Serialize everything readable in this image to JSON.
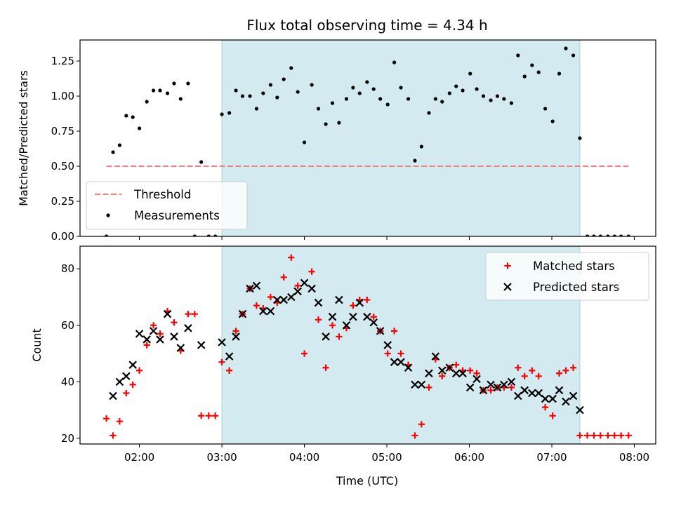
{
  "chart_data": {
    "title": "Flux total observing time = 4.34 h",
    "xlabel": "Time (UTC)",
    "x_ticks": [
      "02:00",
      "03:00",
      "04:00",
      "05:00",
      "06:00",
      "07:00",
      "08:00"
    ],
    "x_tick_hours": [
      2,
      3,
      4,
      5,
      6,
      7,
      8
    ],
    "xlim_hours": [
      1.28,
      8.26
    ],
    "observing_window_hours": [
      3.0,
      7.34
    ],
    "window_color": "#d3eaf0",
    "panels": [
      {
        "type": "scatter",
        "ylabel": "Matched/Predicted stars",
        "ylim": [
          0,
          1.4
        ],
        "y_ticks": [
          "0.00",
          "0.25",
          "0.50",
          "0.75",
          "1.00",
          "1.25"
        ],
        "y_tick_values": [
          0,
          0.25,
          0.5,
          0.75,
          1.0,
          1.25
        ],
        "threshold": {
          "name": "Threshold",
          "value": 0.5,
          "x_range": [
            1.6,
            7.93
          ],
          "color": "#f08080"
        },
        "legend": [
          "Threshold",
          "Measurements"
        ],
        "legend_position": "lower-left",
        "series": [
          {
            "name": "Measurements",
            "color": "#000000",
            "points": [
              [
                1.6,
                0.0
              ],
              [
                1.68,
                0.6
              ],
              [
                1.76,
                0.65
              ],
              [
                1.84,
                0.86
              ],
              [
                1.92,
                0.85
              ],
              [
                2.0,
                0.77
              ],
              [
                2.09,
                0.96
              ],
              [
                2.17,
                1.04
              ],
              [
                2.25,
                1.04
              ],
              [
                2.34,
                1.02
              ],
              [
                2.42,
                1.09
              ],
              [
                2.5,
                0.98
              ],
              [
                2.59,
                1.09
              ],
              [
                2.67,
                0.0
              ],
              [
                2.75,
                0.53
              ],
              [
                2.84,
                0.0
              ],
              [
                2.92,
                0.0
              ],
              [
                3.0,
                0.87
              ],
              [
                3.09,
                0.88
              ],
              [
                3.17,
                1.04
              ],
              [
                3.25,
                1.0
              ],
              [
                3.34,
                1.0
              ],
              [
                3.42,
                0.91
              ],
              [
                3.5,
                1.02
              ],
              [
                3.59,
                1.08
              ],
              [
                3.67,
                0.99
              ],
              [
                3.75,
                1.12
              ],
              [
                3.84,
                1.2
              ],
              [
                3.92,
                1.03
              ],
              [
                4.0,
                0.67
              ],
              [
                4.09,
                1.08
              ],
              [
                4.17,
                0.91
              ],
              [
                4.26,
                0.8
              ],
              [
                4.34,
                0.95
              ],
              [
                4.42,
                0.81
              ],
              [
                4.51,
                0.98
              ],
              [
                4.59,
                1.06
              ],
              [
                4.67,
                1.02
              ],
              [
                4.76,
                1.1
              ],
              [
                4.84,
                1.05
              ],
              [
                4.92,
                0.98
              ],
              [
                5.01,
                0.94
              ],
              [
                5.09,
                1.24
              ],
              [
                5.17,
                1.06
              ],
              [
                5.26,
                0.98
              ],
              [
                5.34,
                0.54
              ],
              [
                5.42,
                0.64
              ],
              [
                5.51,
                0.88
              ],
              [
                5.59,
                0.98
              ],
              [
                5.67,
                0.96
              ],
              [
                5.76,
                1.02
              ],
              [
                5.84,
                1.07
              ],
              [
                5.92,
                1.04
              ],
              [
                6.01,
                1.16
              ],
              [
                6.09,
                1.05
              ],
              [
                6.17,
                1.0
              ],
              [
                6.26,
                0.97
              ],
              [
                6.34,
                1.0
              ],
              [
                6.42,
                0.98
              ],
              [
                6.51,
                0.95
              ],
              [
                6.59,
                1.29
              ],
              [
                6.67,
                1.14
              ],
              [
                6.76,
                1.22
              ],
              [
                6.84,
                1.17
              ],
              [
                6.92,
                0.91
              ],
              [
                7.01,
                0.82
              ],
              [
                7.09,
                1.16
              ],
              [
                7.17,
                1.34
              ],
              [
                7.26,
                1.29
              ],
              [
                7.34,
                0.7
              ],
              [
                7.43,
                0.0
              ],
              [
                7.51,
                0.0
              ],
              [
                7.59,
                0.0
              ],
              [
                7.68,
                0.0
              ],
              [
                7.76,
                0.0
              ],
              [
                7.84,
                0.0
              ],
              [
                7.93,
                0.0
              ]
            ]
          }
        ]
      },
      {
        "type": "scatter",
        "ylabel": "Count",
        "ylim": [
          18,
          88
        ],
        "y_ticks": [
          "20",
          "40",
          "60",
          "80"
        ],
        "y_tick_values": [
          20,
          40,
          60,
          80
        ],
        "legend": [
          "Matched stars",
          "Predicted stars"
        ],
        "legend_position": "upper-right",
        "series": [
          {
            "name": "Matched stars",
            "marker": "plus",
            "color": "#ff0000",
            "points": [
              [
                1.6,
                27
              ],
              [
                1.68,
                21
              ],
              [
                1.76,
                26
              ],
              [
                1.84,
                36
              ],
              [
                1.92,
                39
              ],
              [
                2.0,
                44
              ],
              [
                2.09,
                53
              ],
              [
                2.17,
                60
              ],
              [
                2.25,
                57
              ],
              [
                2.34,
                65
              ],
              [
                2.42,
                61
              ],
              [
                2.5,
                51
              ],
              [
                2.59,
                64
              ],
              [
                2.67,
                64
              ],
              [
                2.75,
                28
              ],
              [
                2.84,
                28
              ],
              [
                2.92,
                28
              ],
              [
                3.0,
                47
              ],
              [
                3.09,
                44
              ],
              [
                3.17,
                58
              ],
              [
                3.25,
                64
              ],
              [
                3.34,
                73
              ],
              [
                3.42,
                67
              ],
              [
                3.5,
                66
              ],
              [
                3.59,
                70
              ],
              [
                3.67,
                68
              ],
              [
                3.75,
                77
              ],
              [
                3.84,
                84
              ],
              [
                3.92,
                74
              ],
              [
                4.0,
                50
              ],
              [
                4.09,
                79
              ],
              [
                4.17,
                62
              ],
              [
                4.26,
                45
              ],
              [
                4.34,
                60
              ],
              [
                4.42,
                56
              ],
              [
                4.51,
                59
              ],
              [
                4.59,
                67
              ],
              [
                4.67,
                69
              ],
              [
                4.76,
                69
              ],
              [
                4.84,
                63
              ],
              [
                4.92,
                58
              ],
              [
                5.01,
                50
              ],
              [
                5.09,
                58
              ],
              [
                5.17,
                50
              ],
              [
                5.26,
                46
              ],
              [
                5.34,
                21
              ],
              [
                5.42,
                25
              ],
              [
                5.51,
                38
              ],
              [
                5.59,
                48
              ],
              [
                5.67,
                42
              ],
              [
                5.76,
                45
              ],
              [
                5.84,
                46
              ],
              [
                5.92,
                44
              ],
              [
                6.01,
                44
              ],
              [
                6.09,
                43
              ],
              [
                6.17,
                37
              ],
              [
                6.26,
                37
              ],
              [
                6.34,
                38
              ],
              [
                6.42,
                38
              ],
              [
                6.51,
                38
              ],
              [
                6.59,
                45
              ],
              [
                6.67,
                42
              ],
              [
                6.76,
                44
              ],
              [
                6.84,
                42
              ],
              [
                6.92,
                31
              ],
              [
                7.01,
                28
              ],
              [
                7.09,
                43
              ],
              [
                7.17,
                44
              ],
              [
                7.26,
                45
              ],
              [
                7.34,
                21
              ],
              [
                7.43,
                21
              ],
              [
                7.51,
                21
              ],
              [
                7.59,
                21
              ],
              [
                7.68,
                21
              ],
              [
                7.76,
                21
              ],
              [
                7.84,
                21
              ],
              [
                7.93,
                21
              ]
            ]
          },
          {
            "name": "Predicted stars",
            "marker": "cross",
            "color": "#000000",
            "points": [
              [
                1.68,
                35
              ],
              [
                1.76,
                40
              ],
              [
                1.84,
                42
              ],
              [
                1.92,
                46
              ],
              [
                2.0,
                57
              ],
              [
                2.09,
                55
              ],
              [
                2.17,
                58
              ],
              [
                2.25,
                55
              ],
              [
                2.34,
                64
              ],
              [
                2.42,
                56
              ],
              [
                2.5,
                52
              ],
              [
                2.59,
                59
              ],
              [
                2.75,
                53
              ],
              [
                3.0,
                54
              ],
              [
                3.09,
                49
              ],
              [
                3.17,
                56
              ],
              [
                3.25,
                64
              ],
              [
                3.34,
                73
              ],
              [
                3.42,
                74
              ],
              [
                3.5,
                65
              ],
              [
                3.59,
                65
              ],
              [
                3.67,
                69
              ],
              [
                3.75,
                69
              ],
              [
                3.84,
                70
              ],
              [
                3.92,
                72
              ],
              [
                4.0,
                75
              ],
              [
                4.09,
                73
              ],
              [
                4.17,
                68
              ],
              [
                4.26,
                56
              ],
              [
                4.34,
                63
              ],
              [
                4.42,
                69
              ],
              [
                4.51,
                60
              ],
              [
                4.59,
                63
              ],
              [
                4.67,
                68
              ],
              [
                4.76,
                63
              ],
              [
                4.84,
                61
              ],
              [
                4.92,
                58
              ],
              [
                5.01,
                53
              ],
              [
                5.09,
                47
              ],
              [
                5.17,
                47
              ],
              [
                5.26,
                45
              ],
              [
                5.34,
                39
              ],
              [
                5.42,
                39
              ],
              [
                5.51,
                43
              ],
              [
                5.59,
                49
              ],
              [
                5.67,
                44
              ],
              [
                5.76,
                45
              ],
              [
                5.84,
                43
              ],
              [
                5.92,
                43
              ],
              [
                6.01,
                38
              ],
              [
                6.09,
                41
              ],
              [
                6.17,
                37
              ],
              [
                6.26,
                39
              ],
              [
                6.34,
                38
              ],
              [
                6.42,
                39
              ],
              [
                6.51,
                40
              ],
              [
                6.59,
                35
              ],
              [
                6.67,
                37
              ],
              [
                6.76,
                36
              ],
              [
                6.84,
                36
              ],
              [
                6.92,
                34
              ],
              [
                7.01,
                34
              ],
              [
                7.09,
                37
              ],
              [
                7.17,
                33
              ],
              [
                7.26,
                35
              ],
              [
                7.34,
                30
              ]
            ]
          }
        ]
      }
    ]
  }
}
